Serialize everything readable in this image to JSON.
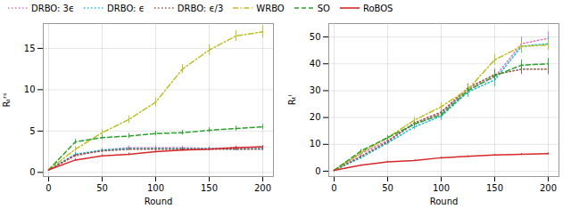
{
  "chart_data": [
    {
      "type": "line",
      "xlabel": "Round",
      "ylabel": "Rₜʳˢ",
      "x": [
        0,
        25,
        50,
        75,
        100,
        125,
        150,
        175,
        200
      ],
      "xlim": [
        -5,
        210
      ],
      "xticks": [
        0,
        50,
        100,
        150,
        200
      ],
      "ylim": [
        -0.5,
        18
      ],
      "yticks": [
        0,
        5,
        10,
        15
      ],
      "grid": true,
      "legend": "upper left",
      "series": [
        {
          "name": "DRBO: 3ϵ",
          "color": "#e377c2",
          "line_style": "dotted",
          "values": [
            0.3,
            2.0,
            2.7,
            3.0,
            3.0,
            3.0,
            2.9,
            3.0,
            3.0
          ],
          "errors": [
            0.05,
            0.2,
            0.2,
            0.2,
            0.2,
            0.2,
            0.2,
            0.2,
            0.2
          ]
        },
        {
          "name": "DRBO: ϵ",
          "color": "#17becf",
          "line_style": "dotted",
          "values": [
            0.3,
            2.2,
            2.7,
            2.9,
            2.9,
            2.9,
            2.9,
            2.8,
            2.9
          ],
          "errors": [
            0.05,
            0.2,
            0.2,
            0.15,
            0.15,
            0.15,
            0.15,
            0.15,
            0.15
          ]
        },
        {
          "name": "DRBO: ϵ/3",
          "color": "#8c564b",
          "line_style": "dotted",
          "values": [
            0.3,
            2.1,
            2.6,
            2.8,
            2.8,
            2.8,
            2.8,
            2.8,
            2.8
          ],
          "errors": [
            0.05,
            0.15,
            0.15,
            0.15,
            0.15,
            0.15,
            0.15,
            0.15,
            0.15
          ]
        },
        {
          "name": "WRBO",
          "color": "#bcbd22",
          "line_style": "dashdot",
          "values": [
            0.3,
            2.8,
            4.8,
            6.4,
            8.5,
            12.5,
            14.8,
            16.5,
            17.0
          ],
          "errors": [
            0.05,
            0.35,
            0.35,
            0.45,
            0.55,
            0.55,
            0.65,
            0.65,
            0.75
          ]
        },
        {
          "name": "SO",
          "color": "#2ca02c",
          "line_style": "dashed",
          "values": [
            0.3,
            3.7,
            4.2,
            4.4,
            4.7,
            4.8,
            5.1,
            5.3,
            5.5
          ],
          "errors": [
            0.05,
            0.3,
            0.25,
            0.3,
            0.3,
            0.3,
            0.3,
            0.3,
            0.3
          ]
        },
        {
          "name": "RoBOS",
          "color": "#d62728",
          "line_style": "solid",
          "values": [
            0.3,
            1.5,
            2.0,
            2.2,
            2.5,
            2.7,
            2.8,
            3.0,
            3.1
          ],
          "errors": [
            0.05,
            0.15,
            0.15,
            0.15,
            0.15,
            0.15,
            0.15,
            0.15,
            0.15
          ]
        }
      ]
    },
    {
      "type": "line",
      "xlabel": "Round",
      "ylabel": "Rₜˡ",
      "x": [
        0,
        25,
        50,
        75,
        100,
        125,
        150,
        175,
        200
      ],
      "xlim": [
        -5,
        210
      ],
      "xticks": [
        0,
        50,
        100,
        150,
        200
      ],
      "ylim": [
        -2,
        55
      ],
      "yticks": [
        0,
        10,
        20,
        30,
        40,
        50
      ],
      "grid": true,
      "series": [
        {
          "name": "DRBO: 3ϵ",
          "color": "#e377c2",
          "line_style": "dotted",
          "values": [
            0.3,
            6.5,
            11.5,
            17.5,
            21.5,
            30.5,
            35.0,
            47.5,
            49.5
          ],
          "errors": [
            0.1,
            0.6,
            0.8,
            1.0,
            1.5,
            2.0,
            2.5,
            2.5,
            2.5
          ]
        },
        {
          "name": "DRBO: ϵ",
          "color": "#17becf",
          "line_style": "dotted",
          "values": [
            0.3,
            5.0,
            10.5,
            16.5,
            20.5,
            29.5,
            34.0,
            46.5,
            47.5
          ],
          "errors": [
            0.1,
            0.6,
            0.8,
            1.0,
            1.5,
            2.0,
            2.5,
            2.5,
            2.5
          ]
        },
        {
          "name": "DRBO: ϵ/3",
          "color": "#8c564b",
          "line_style": "dotted",
          "values": [
            0.3,
            5.5,
            11.0,
            18.0,
            22.0,
            31.0,
            36.0,
            38.0,
            38.0
          ],
          "errors": [
            0.1,
            0.6,
            0.8,
            1.0,
            1.5,
            1.5,
            2.0,
            2.0,
            2.0
          ]
        },
        {
          "name": "WRBO",
          "color": "#bcbd22",
          "line_style": "dashdot",
          "values": [
            0.3,
            6.8,
            12.5,
            19.0,
            24.0,
            30.5,
            41.5,
            46.5,
            47.0
          ],
          "errors": [
            0.1,
            0.6,
            0.8,
            1.0,
            1.5,
            1.5,
            2.0,
            2.0,
            2.0
          ]
        },
        {
          "name": "SO",
          "color": "#2ca02c",
          "line_style": "dashed",
          "values": [
            0.3,
            7.5,
            12.5,
            17.5,
            21.0,
            30.0,
            35.5,
            39.5,
            40.0
          ],
          "errors": [
            0.1,
            0.6,
            0.8,
            0.8,
            1.0,
            1.5,
            2.0,
            2.0,
            2.0
          ]
        },
        {
          "name": "RoBOS",
          "color": "#d62728",
          "line_style": "solid",
          "values": [
            0.3,
            2.2,
            3.5,
            4.0,
            5.0,
            5.5,
            6.0,
            6.3,
            6.5
          ],
          "errors": [
            0.05,
            0.2,
            0.2,
            0.2,
            0.3,
            0.3,
            0.3,
            0.3,
            0.4
          ]
        }
      ]
    }
  ]
}
